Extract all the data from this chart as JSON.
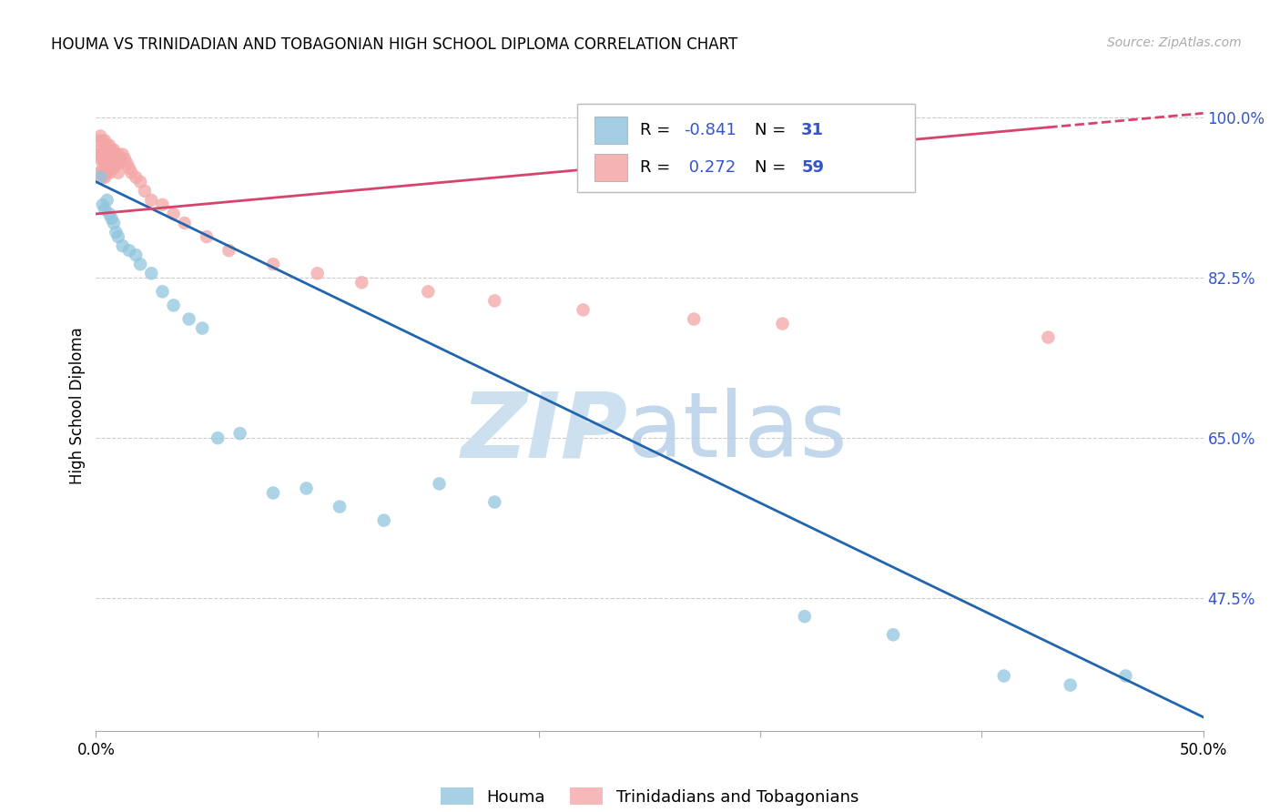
{
  "title": "HOUMA VS TRINIDADIAN AND TOBAGONIAN HIGH SCHOOL DIPLOMA CORRELATION CHART",
  "source": "Source: ZipAtlas.com",
  "ylabel": "High School Diploma",
  "yticks": [
    0.475,
    0.65,
    0.825,
    1.0
  ],
  "ytick_labels": [
    "47.5%",
    "65.0%",
    "82.5%",
    "100.0%"
  ],
  "xmin": 0.0,
  "xmax": 0.5,
  "ymin": 0.33,
  "ymax": 1.04,
  "legend_blue_r": "-0.841",
  "legend_blue_n": "31",
  "legend_pink_r": "0.272",
  "legend_pink_n": "59",
  "legend_label_blue": "Houma",
  "legend_label_pink": "Trinidadians and Tobagonians",
  "blue_scatter_color": "#92c5de",
  "pink_scatter_color": "#f4a6a6",
  "blue_line_color": "#2166ac",
  "pink_line_color": "#d6446e",
  "houma_x": [
    0.002,
    0.003,
    0.004,
    0.005,
    0.006,
    0.007,
    0.008,
    0.009,
    0.01,
    0.012,
    0.015,
    0.018,
    0.02,
    0.025,
    0.03,
    0.035,
    0.042,
    0.048,
    0.055,
    0.065,
    0.08,
    0.095,
    0.11,
    0.13,
    0.155,
    0.18,
    0.32,
    0.36,
    0.41,
    0.44,
    0.465
  ],
  "houma_y": [
    0.935,
    0.905,
    0.9,
    0.91,
    0.895,
    0.89,
    0.885,
    0.875,
    0.87,
    0.86,
    0.855,
    0.85,
    0.84,
    0.83,
    0.81,
    0.795,
    0.78,
    0.77,
    0.65,
    0.655,
    0.59,
    0.595,
    0.575,
    0.56,
    0.6,
    0.58,
    0.455,
    0.435,
    0.39,
    0.38,
    0.39
  ],
  "trinidadian_x": [
    0.001,
    0.001,
    0.002,
    0.002,
    0.002,
    0.002,
    0.003,
    0.003,
    0.003,
    0.003,
    0.003,
    0.004,
    0.004,
    0.004,
    0.004,
    0.004,
    0.005,
    0.005,
    0.005,
    0.005,
    0.006,
    0.006,
    0.006,
    0.006,
    0.007,
    0.007,
    0.007,
    0.008,
    0.008,
    0.008,
    0.009,
    0.009,
    0.01,
    0.01,
    0.01,
    0.011,
    0.012,
    0.013,
    0.014,
    0.015,
    0.016,
    0.018,
    0.02,
    0.022,
    0.025,
    0.03,
    0.035,
    0.04,
    0.05,
    0.06,
    0.08,
    0.1,
    0.12,
    0.15,
    0.18,
    0.22,
    0.27,
    0.31,
    0.43
  ],
  "trinidadian_y": [
    0.975,
    0.96,
    0.98,
    0.965,
    0.955,
    0.94,
    0.975,
    0.96,
    0.955,
    0.945,
    0.935,
    0.975,
    0.965,
    0.955,
    0.945,
    0.935,
    0.97,
    0.96,
    0.95,
    0.94,
    0.97,
    0.96,
    0.95,
    0.94,
    0.965,
    0.955,
    0.945,
    0.965,
    0.955,
    0.945,
    0.96,
    0.95,
    0.96,
    0.95,
    0.94,
    0.955,
    0.96,
    0.955,
    0.95,
    0.945,
    0.94,
    0.935,
    0.93,
    0.92,
    0.91,
    0.905,
    0.895,
    0.885,
    0.87,
    0.855,
    0.84,
    0.83,
    0.82,
    0.81,
    0.8,
    0.79,
    0.78,
    0.775,
    0.76
  ],
  "blue_trend_x": [
    0.0,
    0.5
  ],
  "blue_trend_y": [
    0.93,
    0.345
  ],
  "pink_trend_x": [
    0.0,
    0.5
  ],
  "pink_trend_y_solid_end": 0.43,
  "pink_trend_y": [
    0.895,
    1.005
  ]
}
